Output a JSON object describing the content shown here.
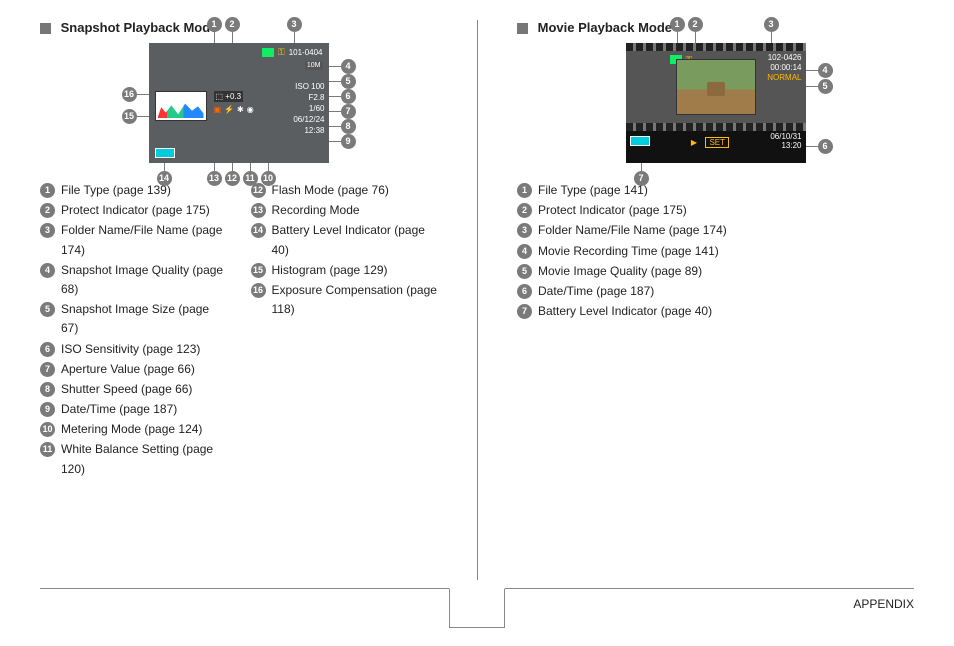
{
  "left": {
    "title": "Snapshot Playback Mode",
    "lcd": {
      "folder_file": "101-0404",
      "iso": "ISO 100",
      "f": "F2.8",
      "shutter": "1/60",
      "date": "06/12/24",
      "time": "12:38",
      "ev": "+0.3",
      "quality_badge": "10M"
    },
    "items_a": [
      {
        "n": "1",
        "t": "File Type (page 139)"
      },
      {
        "n": "2",
        "t": "Protect Indicator (page 175)"
      },
      {
        "n": "3",
        "t": "Folder Name/File Name (page 174)"
      },
      {
        "n": "4",
        "t": "Snapshot Image Quality (page 68)"
      },
      {
        "n": "5",
        "t": "Snapshot Image Size (page 67)"
      },
      {
        "n": "6",
        "t": "ISO Sensitivity (page 123)"
      },
      {
        "n": "7",
        "t": "Aperture Value (page 66)"
      },
      {
        "n": "8",
        "t": "Shutter Speed (page 66)"
      },
      {
        "n": "9",
        "t": "Date/Time (page 187)"
      },
      {
        "n": "10",
        "t": "Metering Mode (page 124)"
      },
      {
        "n": "11",
        "t": "White Balance Setting (page 120)"
      }
    ],
    "items_b": [
      {
        "n": "12",
        "t": "Flash Mode (page 76)"
      },
      {
        "n": "13",
        "t": "Recording Mode"
      },
      {
        "n": "14",
        "t": "Battery Level Indicator (page 40)"
      },
      {
        "n": "15",
        "t": "Histogram (page 129)"
      },
      {
        "n": "16",
        "t": "Exposure Compensation (page 118)"
      }
    ]
  },
  "right": {
    "title": "Movie Playback Mode",
    "film": {
      "folder_file": "102-0426",
      "rec_time": "00:00:14",
      "quality": "NORMAL",
      "date": "06/10/31",
      "time": "13:20",
      "set": "SET"
    },
    "items": [
      {
        "n": "1",
        "t": "File Type (page 141)"
      },
      {
        "n": "2",
        "t": "Protect Indicator (page 175)"
      },
      {
        "n": "3",
        "t": "Folder Name/File Name (page 174)"
      },
      {
        "n": "4",
        "t": "Movie Recording Time (page 141)"
      },
      {
        "n": "5",
        "t": "Movie Image Quality (page 89)"
      },
      {
        "n": "6",
        "t": "Date/Time (page 187)"
      },
      {
        "n": "7",
        "t": "Battery Level Indicator (page 40)"
      }
    ]
  },
  "footer": {
    "page_no": "",
    "appendix": "APPENDIX"
  }
}
